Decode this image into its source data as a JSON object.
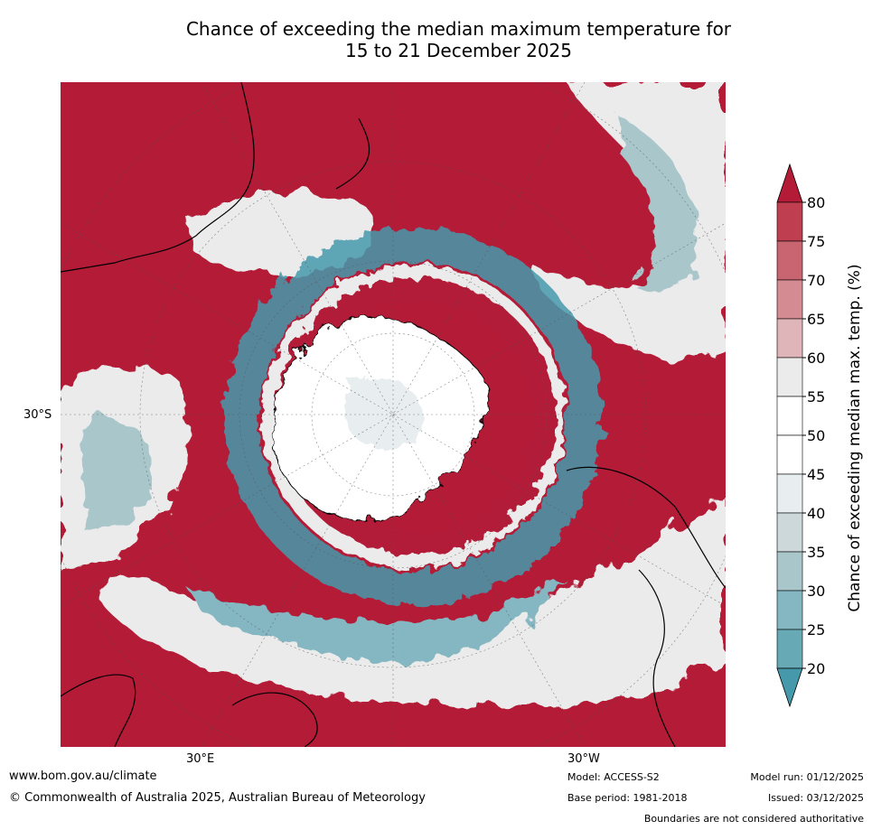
{
  "title": {
    "line1": "Chance of exceeding the median maximum temperature for",
    "line2": "15 to 21 December 2025"
  },
  "axis_labels": {
    "lat_30s": "30°S",
    "lon_30e": "30°E",
    "lon_30w": "30°W"
  },
  "colorbar": {
    "label": "Chance of exceeding median max. temp. (%)",
    "ticks": [
      "80",
      "75",
      "70",
      "65",
      "60",
      "55",
      "50",
      "45",
      "40",
      "35",
      "30",
      "25",
      "20"
    ],
    "colors": {
      "over": "#b31b37",
      "b75_80": "#bf3f50",
      "b70_75": "#c96570",
      "b65_70": "#d48b92",
      "b60_65": "#e0b5b9",
      "b55_60": "#ebebeb",
      "b50_55": "#ffffff",
      "b45_50": "#ffffff",
      "b40_45": "#e8eef0",
      "b35_40": "#cdd8da",
      "b30_35": "#a9c6ca",
      "b25_30": "#84b7c1",
      "b20_25": "#67a9b5",
      "under": "#4599ab"
    }
  },
  "footer": {
    "url": "www.bom.gov.au/climate",
    "copyright": "© Commonwealth of Australia 2025, Australian Bureau of Meteorology",
    "model": "Model: ACCESS-S2",
    "base_period": "Base period: 1981-2018",
    "model_run": "Model run: 01/12/2025",
    "issued": "Issued: 03/12/2025",
    "disclaimer": "Boundaries are not considered authoritative"
  }
}
